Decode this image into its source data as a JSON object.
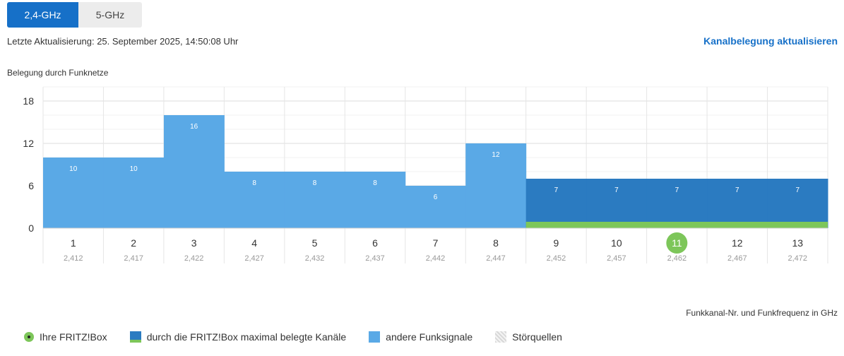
{
  "tabs": {
    "band_24": "2,4-GHz",
    "band_5": "5-GHz"
  },
  "last_update": "Letzte Aktualisierung: 25. September 2025, 14:50:08 Uhr",
  "refresh_link": "Kanalbelegung aktualisieren",
  "chart_title": "Belegung durch Funknetze",
  "axis_caption": "Funkkanal-Nr. und Funkfrequenz in GHz",
  "legend": {
    "fritzbox": "Ihre FRITZ!Box",
    "max_channels": "durch die FRITZ!Box maximal belegte Kanäle",
    "other_signals": "andere Funksignale",
    "interference": "Störquellen"
  },
  "colors": {
    "other": "#5aa9e6",
    "max": "#2b7bc1",
    "fritz": "#7dc65a",
    "grid": "#e6e6e6"
  },
  "chart_data": {
    "type": "bar",
    "title": "Belegung durch Funknetze",
    "xlabel": "Funkkanal-Nr. und Funkfrequenz in GHz",
    "ylabel": "",
    "ylim": [
      0,
      20
    ],
    "yticks": [
      0,
      6,
      12,
      18
    ],
    "categories": [
      "1",
      "2",
      "3",
      "4",
      "5",
      "6",
      "7",
      "8",
      "9",
      "10",
      "11",
      "12",
      "13"
    ],
    "frequencies": [
      "2,412",
      "2,417",
      "2,422",
      "2,427",
      "2,432",
      "2,437",
      "2,442",
      "2,447",
      "2,452",
      "2,457",
      "2,462",
      "2,467",
      "2,472"
    ],
    "values": [
      10,
      10,
      16,
      8,
      8,
      8,
      6,
      12,
      7,
      7,
      7,
      7,
      7
    ],
    "fritzbox_channel": "11",
    "max_occupied_channels": [
      "9",
      "10",
      "11",
      "12",
      "13"
    ],
    "grid": true
  }
}
